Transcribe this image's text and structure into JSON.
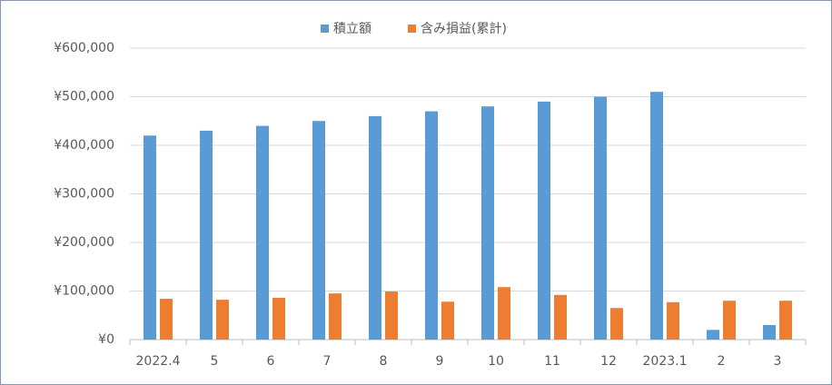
{
  "chart_data": {
    "type": "bar",
    "categories": [
      "2022.4",
      "5",
      "6",
      "7",
      "8",
      "9",
      "10",
      "11",
      "12",
      "2023.1",
      "2",
      "3"
    ],
    "series": [
      {
        "name": "積立額",
        "color": "#5b9bd5",
        "values": [
          420000,
          430000,
          440000,
          450000,
          460000,
          470000,
          480000,
          490000,
          500000,
          510000,
          20000,
          30000
        ]
      },
      {
        "name": "含み損益(累計)",
        "color": "#ed7d31",
        "values": [
          84000,
          82000,
          86000,
          95000,
          99000,
          78000,
          108000,
          92000,
          65000,
          77000,
          80000,
          80000
        ]
      }
    ],
    "ylim": [
      0,
      600000
    ],
    "yticks": [
      {
        "value": 0,
        "label": "¥0"
      },
      {
        "value": 100000,
        "label": "¥100,000"
      },
      {
        "value": 200000,
        "label": "¥200,000"
      },
      {
        "value": 300000,
        "label": "¥300,000"
      },
      {
        "value": 400000,
        "label": "¥400,000"
      },
      {
        "value": 500000,
        "label": "¥500,000"
      },
      {
        "value": 600000,
        "label": "¥600,000"
      }
    ],
    "grid": true,
    "legend": "top"
  }
}
